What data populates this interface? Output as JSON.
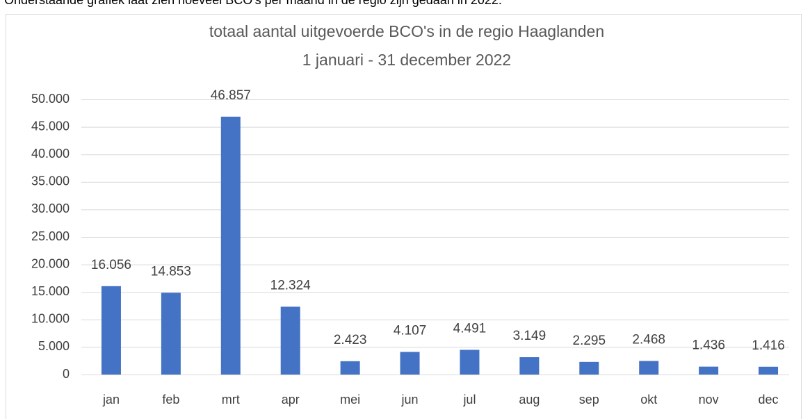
{
  "intro": "Onderstaande grafiek laat zien hoeveel BCO's per maand in de regio zijn gedaan in 2022.",
  "chart_data": {
    "type": "bar",
    "title": "totaal aantal uitgevoerde BCO's in de regio Haaglanden",
    "subtitle": "1 januari - 31 december 2022",
    "categories": [
      "jan",
      "feb",
      "mrt",
      "apr",
      "mei",
      "jun",
      "jul",
      "aug",
      "sep",
      "okt",
      "nov",
      "dec"
    ],
    "values": [
      16056,
      14853,
      46857,
      12324,
      2423,
      4107,
      4491,
      3149,
      2295,
      2468,
      1436,
      1416
    ],
    "value_labels": [
      "16.056",
      "14.853",
      "46.857",
      "12.324",
      "2.423",
      "4.107",
      "4.491",
      "3.149",
      "2.295",
      "2.468",
      "1.436",
      "1.416"
    ],
    "color": "#4472c4",
    "ylim": [
      0,
      50000
    ],
    "yticks": [
      0,
      {
        "value": 5000,
        "label": "5.000"
      },
      {
        "value": 10000,
        "label": "10.000"
      },
      {
        "value": 15000,
        "label": "15.000"
      },
      {
        "value": 20000,
        "label": "20.000"
      },
      {
        "value": 25000,
        "label": "25.000"
      },
      {
        "value": 30000,
        "label": "30.000"
      },
      {
        "value": 35000,
        "label": "35.000"
      },
      {
        "value": 40000,
        "label": "40.000"
      },
      {
        "value": 45000,
        "label": "45.000"
      },
      {
        "value": 50000,
        "label": "50.000"
      }
    ],
    "grid": true
  }
}
